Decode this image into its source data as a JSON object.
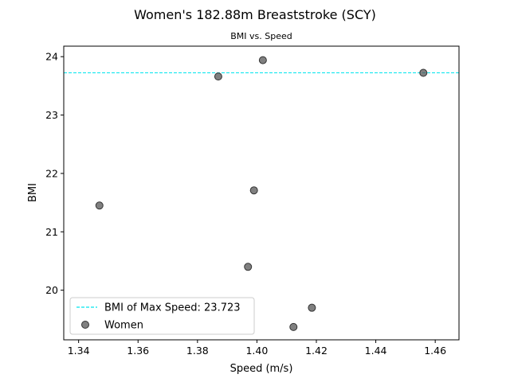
{
  "chart_data": {
    "type": "scatter",
    "title": "Women's 182.88m Breaststroke (SCY)",
    "subtitle": "BMI vs. Speed",
    "xlabel": "Speed (m/s)",
    "ylabel": "BMI",
    "xlim": [
      1.335,
      1.468
    ],
    "ylim": [
      19.15,
      24.18
    ],
    "xticks": [
      1.34,
      1.36,
      1.38,
      1.4,
      1.42,
      1.44,
      1.46
    ],
    "yticks": [
      20,
      21,
      22,
      23,
      24
    ],
    "grid": false,
    "legend_position": "lower-left",
    "reference_line": {
      "label": "BMI of Max Speed: 23.723",
      "y": 23.723,
      "style": "dashed",
      "color": "#00e5ee"
    },
    "series": [
      {
        "name": "Women",
        "color": "#555555",
        "points": [
          {
            "x": 1.347,
            "y": 21.45
          },
          {
            "x": 1.387,
            "y": 23.66
          },
          {
            "x": 1.397,
            "y": 20.4
          },
          {
            "x": 1.399,
            "y": 21.71
          },
          {
            "x": 1.402,
            "y": 23.94
          },
          {
            "x": 1.4123,
            "y": 19.37
          },
          {
            "x": 1.4185,
            "y": 19.7
          },
          {
            "x": 1.456,
            "y": 23.723
          }
        ]
      }
    ]
  }
}
